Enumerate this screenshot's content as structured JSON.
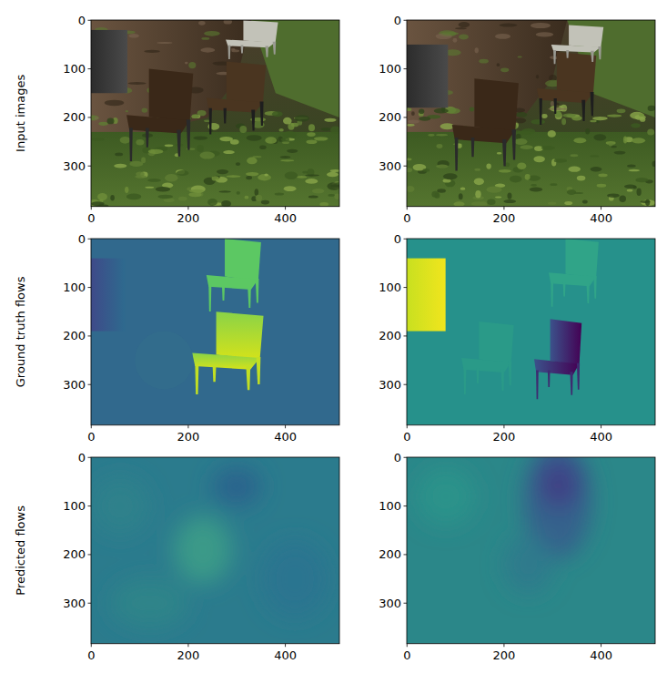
{
  "chart_data": [
    {
      "type": "image",
      "ylabel": "Input images",
      "xlim": [
        -0.5,
        511.5
      ],
      "ylim": [
        383.5,
        -0.5
      ],
      "xticks": [
        0,
        200,
        400
      ],
      "yticks": [
        0,
        100,
        200,
        300
      ]
    },
    {
      "type": "image",
      "xlim": [
        -0.5,
        511.5
      ],
      "ylim": [
        383.5,
        -0.5
      ],
      "xticks": [
        0,
        200,
        400
      ],
      "yticks": [
        0,
        100,
        200,
        300
      ]
    },
    {
      "type": "image",
      "ylabel": "Ground truth flows",
      "xlim": [
        -0.5,
        511.5
      ],
      "ylim": [
        383.5,
        -0.5
      ],
      "xticks": [
        0,
        200,
        400
      ],
      "yticks": [
        0,
        100,
        200,
        300
      ]
    },
    {
      "type": "image",
      "xlim": [
        -0.5,
        511.5
      ],
      "ylim": [
        383.5,
        -0.5
      ],
      "xticks": [
        0,
        200,
        400
      ],
      "yticks": [
        0,
        100,
        200,
        300
      ]
    },
    {
      "type": "image",
      "ylabel": "Predicted flows",
      "xlim": [
        -0.5,
        511.5
      ],
      "ylim": [
        383.5,
        -0.5
      ],
      "xticks": [
        0,
        200,
        400
      ],
      "yticks": [
        0,
        100,
        200,
        300
      ]
    },
    {
      "type": "image",
      "xlim": [
        -0.5,
        511.5
      ],
      "ylim": [
        383.5,
        -0.5
      ],
      "xticks": [
        0,
        200,
        400
      ],
      "yticks": [
        0,
        100,
        200,
        300
      ]
    }
  ]
}
